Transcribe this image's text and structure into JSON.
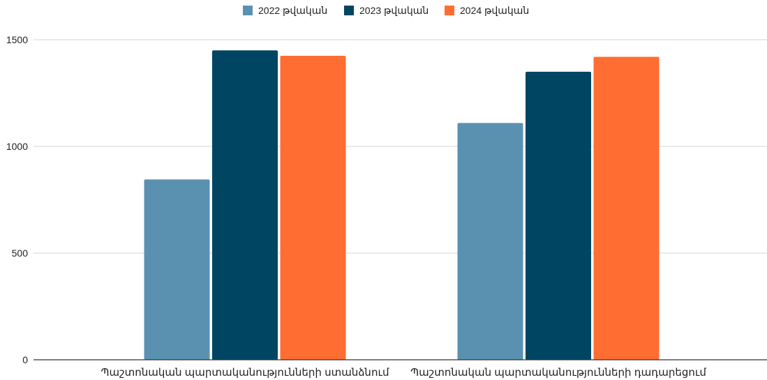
{
  "chart_data": {
    "type": "bar",
    "title": "",
    "xlabel": "",
    "ylabel": "",
    "categories": [
      "Պաշտոնական պարտականությունների ստանձնում",
      "Պաշտոնական պարտականությունների դադարեցում"
    ],
    "series": [
      {
        "name": "2022 թվական",
        "color": "#5b91b0",
        "values": [
          845,
          1110
        ]
      },
      {
        "name": "2023 թվական",
        "color": "#004562",
        "values": [
          1450,
          1350
        ]
      },
      {
        "name": "2024 թվական",
        "color": "#ff6d33",
        "values": [
          1425,
          1420
        ]
      }
    ],
    "ylim": [
      0,
      1500
    ],
    "yticks": [
      "0",
      "500",
      "1000",
      "1500"
    ],
    "grid": true,
    "legend_position": "top-center"
  }
}
